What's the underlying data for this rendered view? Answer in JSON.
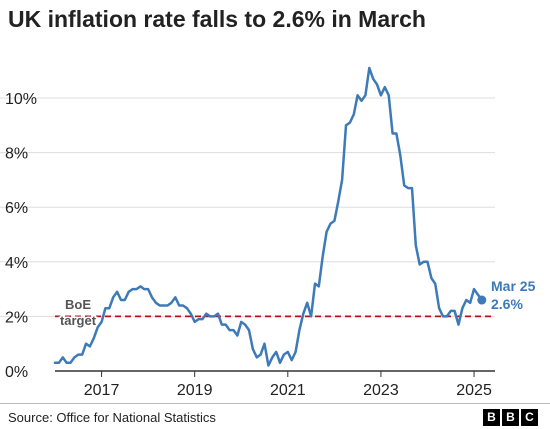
{
  "title": "UK inflation rate falls to 2.6% in March",
  "source": "Source: Office for National Statistics",
  "logo_letters": [
    "B",
    "B",
    "C"
  ],
  "colors": {
    "line": "#3d7ab8",
    "target": "#b5121b",
    "grid": "#dddddd",
    "axis": "#333333",
    "text": "#222222"
  },
  "chart_data": {
    "type": "line",
    "title": "UK inflation rate falls to 2.6% in March",
    "xlabel": "",
    "ylabel": "",
    "xlim": [
      2016.0,
      2025.45
    ],
    "ylim": [
      0,
      11.1
    ],
    "x_ticks": [
      2017,
      2019,
      2021,
      2023,
      2025
    ],
    "x_tick_labels": [
      "2017",
      "2019",
      "2021",
      "2023",
      "2025"
    ],
    "y_ticks": [
      0,
      2,
      4,
      6,
      8,
      10
    ],
    "y_tick_labels": [
      "0%",
      "2%",
      "4%",
      "6%",
      "8%",
      "10%"
    ],
    "grid": "horizontal",
    "target": {
      "value": 2,
      "label_lines": [
        "BoE",
        "target"
      ]
    },
    "end_label": {
      "lines": [
        "Mar 25",
        "2.6%"
      ]
    },
    "series": [
      {
        "x_start": 2016.0,
        "step_months": 1,
        "values": [
          0.3,
          0.3,
          0.5,
          0.3,
          0.3,
          0.5,
          0.6,
          0.6,
          1.0,
          0.9,
          1.2,
          1.6,
          1.8,
          2.3,
          2.3,
          2.7,
          2.9,
          2.6,
          2.6,
          2.9,
          3.0,
          3.0,
          3.1,
          3.0,
          3.0,
          2.7,
          2.5,
          2.4,
          2.4,
          2.4,
          2.5,
          2.7,
          2.4,
          2.4,
          2.3,
          2.1,
          1.8,
          1.9,
          1.9,
          2.1,
          2.0,
          2.0,
          2.1,
          1.7,
          1.7,
          1.5,
          1.5,
          1.3,
          1.8,
          1.7,
          1.5,
          0.8,
          0.5,
          0.6,
          1.0,
          0.2,
          0.5,
          0.7,
          0.3,
          0.6,
          0.7,
          0.4,
          0.7,
          1.5,
          2.1,
          2.5,
          2.0,
          3.2,
          3.1,
          4.2,
          5.1,
          5.4,
          5.5,
          6.2,
          7.0,
          9.0,
          9.1,
          9.4,
          10.1,
          9.9,
          10.1,
          11.1,
          10.7,
          10.5,
          10.1,
          10.4,
          10.1,
          8.7,
          8.7,
          7.9,
          6.8,
          6.7,
          6.7,
          4.6,
          3.9,
          4.0,
          4.0,
          3.4,
          3.2,
          2.3,
          2.0,
          2.0,
          2.2,
          2.2,
          1.7,
          2.3,
          2.6,
          2.5,
          3.0,
          2.8,
          2.6
        ]
      }
    ]
  }
}
